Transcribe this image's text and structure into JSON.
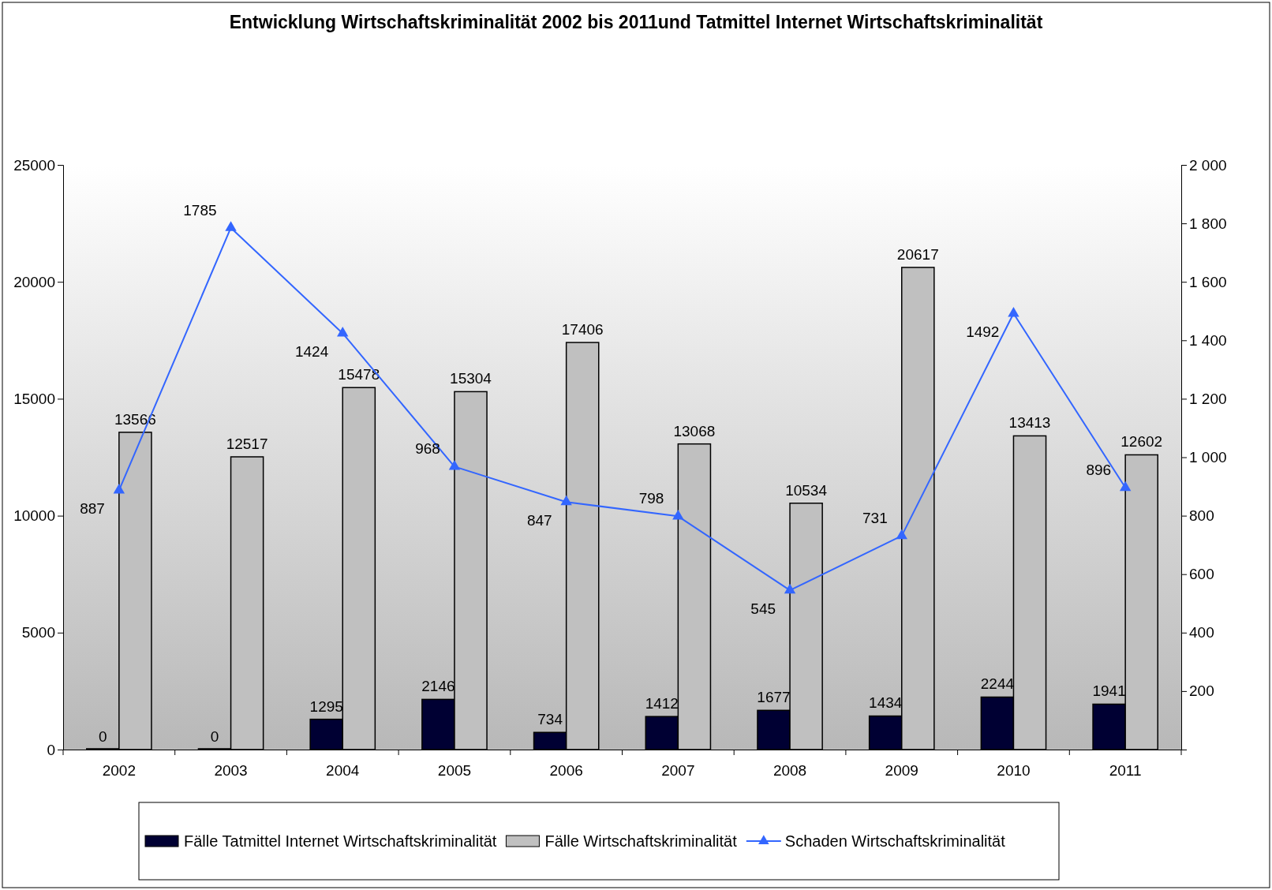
{
  "chart_data": {
    "type": "bar",
    "title": "Entwicklung Wirtschaftskriminalität 2002 bis 2011und Tatmittel Internet Wirtschaftskriminalität",
    "categories": [
      "2002",
      "2003",
      "2004",
      "2005",
      "2006",
      "2007",
      "2008",
      "2009",
      "2010",
      "2011"
    ],
    "series": [
      {
        "name": "Fälle Tatmittel Internet Wirtschaftskriminalität",
        "color": "#000033",
        "values": [
          0,
          0,
          1295,
          2146,
          734,
          1412,
          1677,
          1434,
          2244,
          1941
        ]
      },
      {
        "name": "Fälle Wirtschaftskriminalität",
        "color": "#c0c0c0",
        "values": [
          13566,
          12517,
          15478,
          15304,
          17406,
          13068,
          10534,
          20617,
          13413,
          12602
        ]
      },
      {
        "name": "Schaden Wirtschaftskriminalität",
        "type": "line",
        "axis": "y2",
        "color": "#3366ff",
        "marker": "triangle",
        "values": [
          887,
          1785,
          1424,
          968,
          847,
          798,
          545,
          731,
          1492,
          896
        ]
      }
    ],
    "ylim": [
      0,
      25000
    ],
    "yticks": [
      0,
      5000,
      10000,
      15000,
      20000,
      25000
    ],
    "y2lim": [
      0,
      2000
    ],
    "y2ticks": [
      {
        "value": 200,
        "label": "200"
      },
      {
        "value": 400,
        "label": "400"
      },
      {
        "value": 600,
        "label": "600"
      },
      {
        "value": 800,
        "label": "800"
      },
      {
        "value": 1000,
        "label": "1 000"
      },
      {
        "value": 1200,
        "label": "1 200"
      },
      {
        "value": 1400,
        "label": "1 400"
      },
      {
        "value": 1600,
        "label": "1 600"
      },
      {
        "value": 1800,
        "label": "1 800"
      },
      {
        "value": 2000,
        "label": "2 000"
      }
    ],
    "data_labels": true,
    "legend": "bottom",
    "grid": false
  }
}
